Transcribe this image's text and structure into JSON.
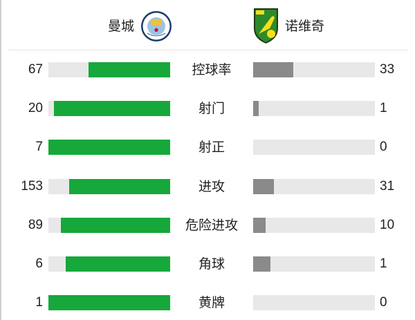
{
  "header": {
    "home_team": {
      "name": "曼城",
      "logo_icon": "manchester-city-crest-icon",
      "logo_text": "MANCHESTER CITY"
    },
    "away_team": {
      "name": "诺维奇",
      "logo_icon": "norwich-city-crest-icon"
    }
  },
  "colors": {
    "home_bar": "#16a83b",
    "away_bar": "#8a8a8a",
    "track": "#e8e8e8"
  },
  "stats": [
    {
      "label": "控球率",
      "home": "67",
      "away": "33"
    },
    {
      "label": "射门",
      "home": "20",
      "away": "1"
    },
    {
      "label": "射正",
      "home": "7",
      "away": "0"
    },
    {
      "label": "进攻",
      "home": "153",
      "away": "31"
    },
    {
      "label": "危险进攻",
      "home": "89",
      "away": "10"
    },
    {
      "label": "角球",
      "home": "6",
      "away": "1"
    },
    {
      "label": "黄牌",
      "home": "1",
      "away": "0"
    }
  ]
}
